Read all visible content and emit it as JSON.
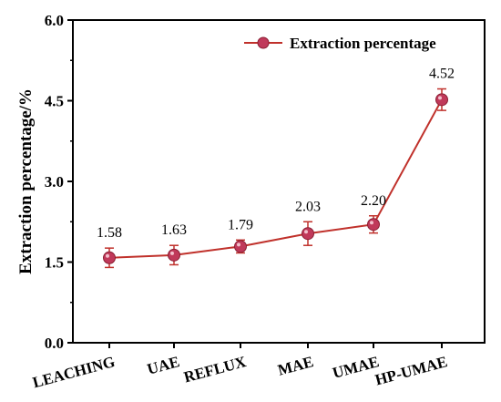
{
  "chart_data": {
    "type": "line",
    "categories": [
      "LEACHING",
      "UAE",
      "REFLUX",
      "MAE",
      "UMAE",
      "HP-UMAE"
    ],
    "series": [
      {
        "name": "Extraction percentage",
        "values": [
          1.58,
          1.63,
          1.79,
          2.03,
          2.2,
          4.52
        ],
        "errors": [
          0.18,
          0.18,
          0.12,
          0.22,
          0.16,
          0.2
        ],
        "data_labels": [
          "1.58",
          "1.63",
          "1.79",
          "2.03",
          "2.20",
          "4.52"
        ]
      }
    ],
    "ylabel": "Extraction percentage/%",
    "ylim": [
      0,
      6
    ],
    "yticks": [
      "0.0",
      "1.5",
      "3.0",
      "4.5",
      "6.0"
    ],
    "legend_position": "top-right",
    "grid": false,
    "colors": {
      "line": "#c0312b",
      "marker": "#c0395a",
      "axis": "#000000"
    }
  }
}
